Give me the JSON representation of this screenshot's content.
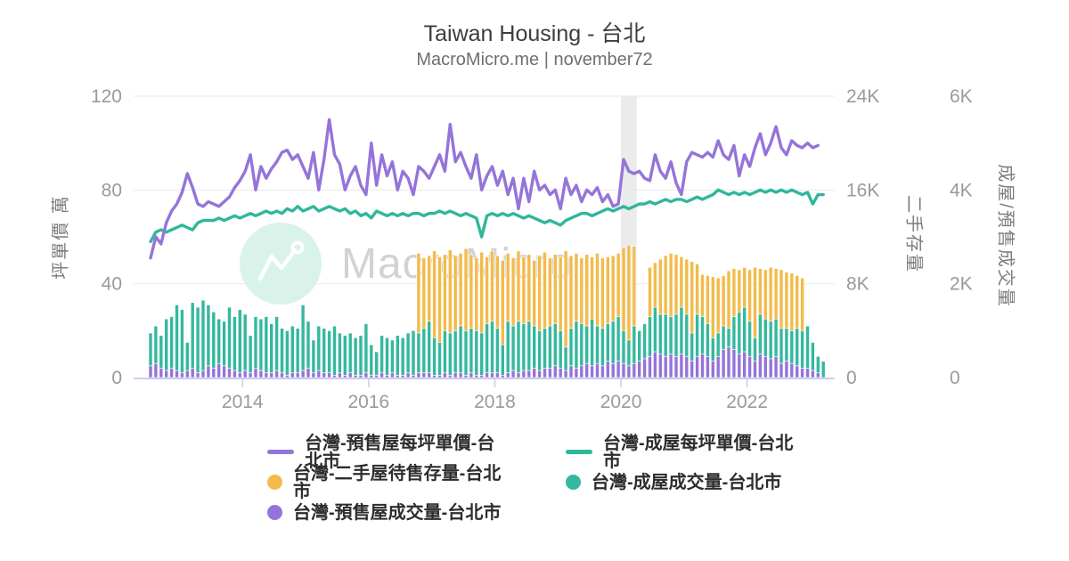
{
  "header": {
    "title": "Taiwan Housing - 台北",
    "subtitle": "MacroMicro.me | november72"
  },
  "watermark": {
    "text": "MacroMicro"
  },
  "axes": {
    "left": {
      "label": "坪單價 萬",
      "ticks": [
        "0",
        "40",
        "80",
        "120"
      ],
      "max": 120
    },
    "right1": {
      "label": "二手存量",
      "ticks": [
        "0",
        "8K",
        "16K",
        "24K"
      ],
      "max": 24000
    },
    "right2": {
      "label": "成屋/預售成交量",
      "ticks": [
        "0",
        "2K",
        "4K",
        "6K"
      ],
      "max": 6000
    },
    "x": {
      "ticks": [
        "2014",
        "2016",
        "2018",
        "2020",
        "2022"
      ]
    }
  },
  "legend": {
    "items": [
      {
        "label": "台灣-預售屋每坪單價-台北市",
        "marker": "line",
        "color": "#9574D9"
      },
      {
        "label": "台灣-成屋每坪單價-台北市",
        "marker": "line",
        "color": "#2FB79B"
      },
      {
        "label": "台灣-二手屋待售存量-台北市",
        "marker": "circle",
        "color": "#F2BB4B"
      },
      {
        "label": "台灣-成屋成交量-台北市",
        "marker": "circle",
        "color": "#35B89E"
      },
      {
        "label": "台灣-預售屋成交量-台北市",
        "marker": "circle",
        "color": "#9574D9"
      }
    ]
  },
  "chart_data": {
    "type": "mixed",
    "title": "Taiwan Housing - 台北",
    "x_unit": "month",
    "grid": true,
    "legend_position": "bottom",
    "ylim_left": [
      0,
      120
    ],
    "ylim_right1": [
      0,
      24000
    ],
    "ylim_right2": [
      0,
      6000
    ],
    "x_tick_years": [
      2014,
      2016,
      2018,
      2020,
      2022
    ],
    "recession_band": {
      "from": "2020-01",
      "to": "2020-03"
    },
    "months": [
      "2012-07",
      "2012-08",
      "2012-09",
      "2012-10",
      "2012-11",
      "2012-12",
      "2013-01",
      "2013-02",
      "2013-03",
      "2013-04",
      "2013-05",
      "2013-06",
      "2013-07",
      "2013-08",
      "2013-09",
      "2013-10",
      "2013-11",
      "2013-12",
      "2014-01",
      "2014-02",
      "2014-03",
      "2014-04",
      "2014-05",
      "2014-06",
      "2014-07",
      "2014-08",
      "2014-09",
      "2014-10",
      "2014-11",
      "2014-12",
      "2015-01",
      "2015-02",
      "2015-03",
      "2015-04",
      "2015-05",
      "2015-06",
      "2015-07",
      "2015-08",
      "2015-09",
      "2015-10",
      "2015-11",
      "2015-12",
      "2016-01",
      "2016-02",
      "2016-03",
      "2016-04",
      "2016-05",
      "2016-06",
      "2016-07",
      "2016-08",
      "2016-09",
      "2016-10",
      "2016-11",
      "2016-12",
      "2017-01",
      "2017-02",
      "2017-03",
      "2017-04",
      "2017-05",
      "2017-06",
      "2017-07",
      "2017-08",
      "2017-09",
      "2017-10",
      "2017-11",
      "2017-12",
      "2018-01",
      "2018-02",
      "2018-03",
      "2018-04",
      "2018-05",
      "2018-06",
      "2018-07",
      "2018-08",
      "2018-09",
      "2018-10",
      "2018-11",
      "2018-12",
      "2019-01",
      "2019-02",
      "2019-03",
      "2019-04",
      "2019-05",
      "2019-06",
      "2019-07",
      "2019-08",
      "2019-09",
      "2019-10",
      "2019-11",
      "2019-12",
      "2020-01",
      "2020-02",
      "2020-03",
      "2020-04",
      "2020-05",
      "2020-06",
      "2020-07",
      "2020-08",
      "2020-09",
      "2020-10",
      "2020-11",
      "2020-12",
      "2021-01",
      "2021-02",
      "2021-03",
      "2021-04",
      "2021-05",
      "2021-06",
      "2021-07",
      "2021-08",
      "2021-09",
      "2021-10",
      "2021-11",
      "2021-12",
      "2022-01",
      "2022-02",
      "2022-03",
      "2022-04",
      "2022-05",
      "2022-06",
      "2022-07",
      "2022-08",
      "2022-09",
      "2022-10",
      "2022-11",
      "2022-12",
      "2023-01",
      "2023-02",
      "2023-03"
    ],
    "series": [
      {
        "name": "台灣-預售屋每坪單價-台北市",
        "type": "line",
        "axis": "left",
        "color": "#9574D9",
        "values": [
          51,
          60,
          57,
          66,
          71,
          74,
          79,
          87,
          81,
          74,
          73,
          75,
          74,
          73,
          75,
          77,
          81,
          84,
          88,
          95,
          80,
          90,
          85,
          89,
          92,
          96,
          97,
          93,
          95,
          90,
          85,
          96,
          80,
          93,
          110,
          95,
          91,
          80,
          86,
          90,
          82,
          78,
          100,
          82,
          95,
          86,
          92,
          80,
          88,
          85,
          78,
          90,
          88,
          85,
          90,
          95,
          88,
          108,
          92,
          96,
          90,
          85,
          95,
          80,
          86,
          90,
          82,
          88,
          78,
          85,
          72,
          85,
          75,
          88,
          80,
          82,
          78,
          80,
          72,
          85,
          78,
          82,
          75,
          80,
          78,
          81,
          75,
          78,
          73,
          74,
          93,
          88,
          87,
          88,
          85,
          84,
          95,
          88,
          85,
          92,
          83,
          78,
          92,
          96,
          95,
          94,
          96,
          94,
          101,
          95,
          93,
          99,
          86,
          95,
          90,
          98,
          104,
          95,
          100,
          107,
          98,
          95,
          101,
          99,
          98,
          100,
          98,
          99,
          null
        ]
      },
      {
        "name": "台灣-成屋每坪單價-台北市",
        "type": "line",
        "axis": "left",
        "color": "#2FB79B",
        "values": [
          58,
          62,
          63,
          62,
          63,
          64,
          65,
          64,
          63,
          66,
          67,
          67,
          67,
          68,
          67,
          68,
          69,
          68,
          69,
          70,
          69,
          70,
          71,
          70,
          71,
          70,
          72,
          71,
          73,
          71,
          72,
          73,
          71,
          72,
          73,
          72,
          71,
          72,
          70,
          71,
          69,
          70,
          68,
          71,
          70,
          69,
          70,
          69,
          70,
          69,
          70,
          70,
          69,
          70,
          70,
          71,
          70,
          71,
          70,
          69,
          70,
          69,
          68,
          60,
          69,
          70,
          69,
          70,
          69,
          70,
          69,
          68,
          69,
          68,
          67,
          66,
          67,
          66,
          65,
          67,
          68,
          69,
          70,
          70,
          69,
          70,
          71,
          72,
          71,
          72,
          73,
          72,
          73,
          74,
          74,
          75,
          74,
          75,
          76,
          75,
          76,
          76,
          75,
          76,
          77,
          76,
          77,
          78,
          80,
          79,
          78,
          79,
          78,
          79,
          78,
          79,
          80,
          79,
          80,
          79,
          80,
          79,
          80,
          79,
          78,
          79,
          74,
          78,
          78
        ]
      },
      {
        "name": "台灣-二手屋待售存量-台北市",
        "type": "bar",
        "axis": "right1",
        "color": "#F2BB4B",
        "values": [
          null,
          null,
          null,
          null,
          null,
          null,
          null,
          null,
          null,
          null,
          null,
          null,
          null,
          null,
          null,
          null,
          null,
          null,
          null,
          null,
          null,
          null,
          null,
          null,
          null,
          null,
          null,
          null,
          null,
          null,
          null,
          null,
          null,
          null,
          null,
          null,
          null,
          null,
          null,
          null,
          null,
          null,
          null,
          null,
          null,
          null,
          null,
          null,
          null,
          null,
          null,
          10600,
          10200,
          10400,
          10800,
          10300,
          10500,
          10900,
          10400,
          10600,
          11000,
          10500,
          10200,
          10700,
          10300,
          10800,
          10400,
          10000,
          10600,
          10200,
          10800,
          10300,
          10500,
          10000,
          10400,
          10700,
          10200,
          10500,
          10300,
          10800,
          10400,
          10600,
          10200,
          10500,
          10300,
          10600,
          10200,
          10300,
          10400,
          10600,
          11100,
          11300,
          11200,
          null,
          null,
          9400,
          9800,
          10100,
          10400,
          10600,
          10500,
          10300,
          10100,
          9900,
          9700,
          8800,
          8700,
          8600,
          8500,
          8700,
          9100,
          9300,
          9200,
          9400,
          9200,
          9400,
          9300,
          9200,
          9400,
          9300,
          9200,
          9000,
          8900,
          8700,
          8500,
          null,
          null,
          null,
          null
        ]
      },
      {
        "name": "台灣-成屋成交量-台北市",
        "type": "bar",
        "axis": "right2",
        "color": "#35B89E",
        "values": [
          950,
          1100,
          900,
          1250,
          1300,
          1550,
          1450,
          750,
          1600,
          1500,
          1650,
          1550,
          1400,
          1250,
          1200,
          1500,
          1300,
          1450,
          1350,
          900,
          1300,
          1250,
          1300,
          1150,
          1300,
          1050,
          1000,
          1100,
          1050,
          1550,
          1200,
          800,
          1100,
          1050,
          1000,
          1100,
          950,
          900,
          950,
          850,
          900,
          1150,
          700,
          550,
          900,
          850,
          800,
          900,
          850,
          950,
          1000,
          950,
          1050,
          1200,
          850,
          750,
          1000,
          950,
          1000,
          1100,
          1000,
          1050,
          1000,
          950,
          1150,
          1200,
          1050,
          700,
          1200,
          1100,
          1200,
          1150,
          1200,
          1100,
          1000,
          1050,
          1100,
          1150,
          1000,
          650,
          1050,
          1200,
          1150,
          1100,
          1250,
          1100,
          1050,
          1150,
          1200,
          1300,
          1000,
          800,
          1100,
          1000,
          1150,
          1300,
          1500,
          1350,
          1350,
          1300,
          1350,
          1500,
          1350,
          950,
          1350,
          1300,
          1150,
          850,
          950,
          1100,
          1050,
          1300,
          1400,
          1500,
          1200,
          850,
          1350,
          1250,
          1200,
          1250,
          1050,
          1050,
          1000,
          1050,
          1000,
          1100,
          750,
          450,
          350
        ]
      },
      {
        "name": "台灣-預售屋成交量-台北市",
        "type": "bar",
        "axis": "right2",
        "color": "#9574D9",
        "values": [
          250,
          300,
          200,
          150,
          200,
          150,
          100,
          150,
          200,
          100,
          150,
          250,
          200,
          300,
          250,
          200,
          150,
          100,
          150,
          100,
          200,
          150,
          100,
          100,
          150,
          100,
          50,
          100,
          100,
          150,
          200,
          100,
          150,
          100,
          100,
          50,
          100,
          50,
          100,
          50,
          50,
          100,
          50,
          50,
          100,
          50,
          100,
          50,
          50,
          100,
          50,
          100,
          100,
          100,
          50,
          50,
          100,
          50,
          100,
          100,
          50,
          100,
          50,
          50,
          100,
          100,
          100,
          50,
          100,
          150,
          100,
          150,
          150,
          200,
          150,
          200,
          200,
          250,
          200,
          150,
          250,
          200,
          250,
          300,
          250,
          300,
          250,
          350,
          300,
          350,
          300,
          250,
          300,
          350,
          400,
          450,
          550,
          500,
          450,
          500,
          450,
          500,
          450,
          350,
          450,
          500,
          450,
          350,
          450,
          600,
          650,
          600,
          500,
          550,
          450,
          350,
          500,
          450,
          400,
          450,
          300,
          350,
          300,
          250,
          200,
          200,
          150,
          100,
          null
        ]
      }
    ]
  }
}
